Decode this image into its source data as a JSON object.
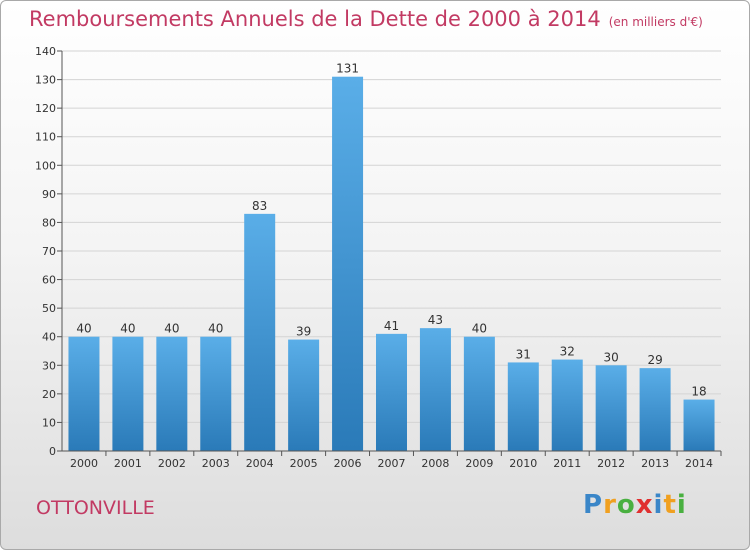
{
  "title": "Remboursements Annuels de la Dette de 2000 à 2014",
  "unit": "(en milliers d'€)",
  "city": "OTTONVILLE",
  "logo": "Proxiti",
  "colors": {
    "title": "#c23a63",
    "bar_light": "#5aaee8",
    "bar_dark": "#2a7ab8"
  },
  "chart_data": {
    "type": "bar",
    "categories": [
      "2000",
      "2001",
      "2002",
      "2003",
      "2004",
      "2005",
      "2006",
      "2007",
      "2008",
      "2009",
      "2010",
      "2011",
      "2012",
      "2013",
      "2014"
    ],
    "values": [
      40,
      40,
      40,
      40,
      83,
      39,
      131,
      41,
      43,
      40,
      31,
      32,
      30,
      29,
      18
    ],
    "ylim": [
      0,
      140
    ],
    "yticks": [
      0,
      10,
      20,
      30,
      40,
      50,
      60,
      70,
      80,
      90,
      100,
      110,
      120,
      130,
      140
    ],
    "grid": true
  }
}
